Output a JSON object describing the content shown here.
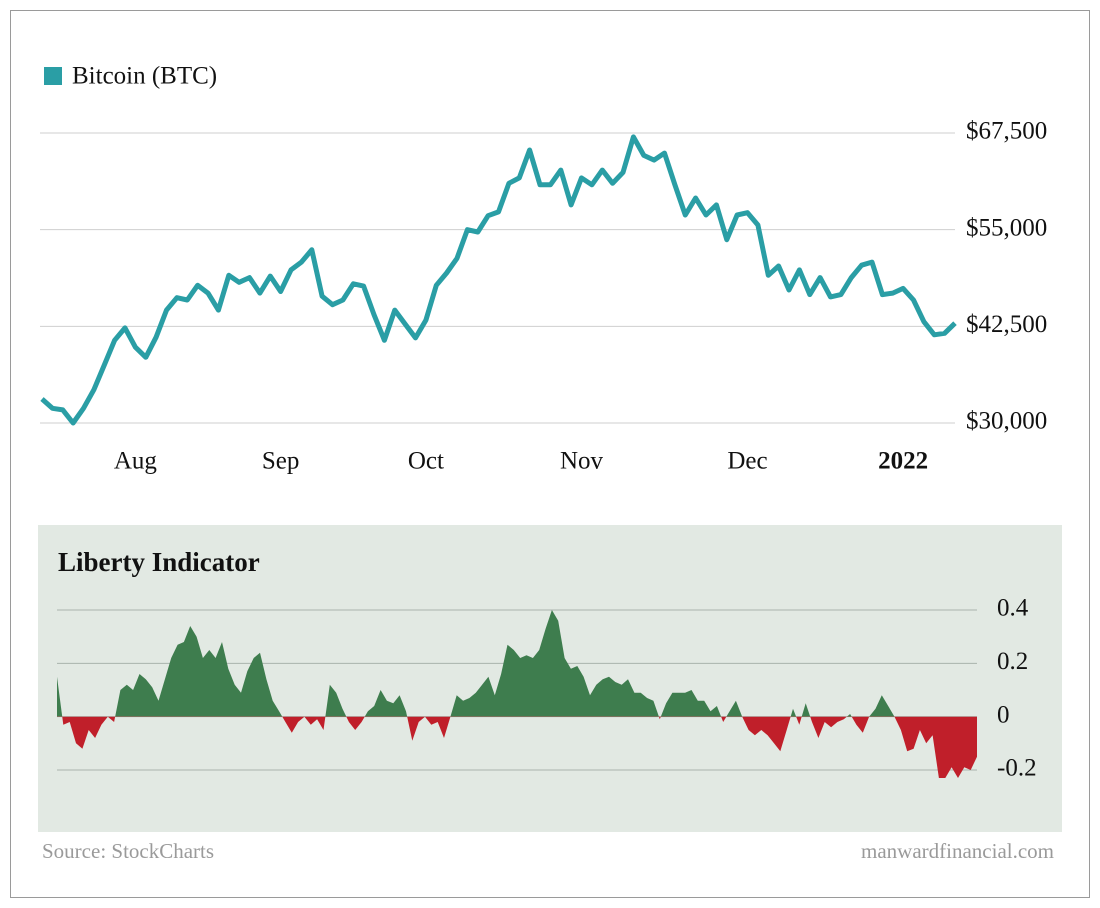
{
  "chart_data": [
    {
      "type": "line",
      "series": [
        {
          "name": "Bitcoin (BTC)",
          "color": "#2a9ea5",
          "values": [
            33100,
            31900,
            31700,
            30000,
            31900,
            34300,
            37500,
            40700,
            42300,
            39800,
            38500,
            41100,
            44600,
            46200,
            45900,
            47800,
            46800,
            44600,
            49100,
            48200,
            48800,
            46800,
            49000,
            47000,
            49800,
            50800,
            52400,
            46400,
            45300,
            45900,
            48000,
            47700,
            44000,
            40700,
            44600,
            42800,
            41000,
            43300,
            47800,
            49400,
            51300,
            55000,
            54700,
            56800,
            57300,
            61000,
            61700,
            65300,
            60800,
            60800,
            62700,
            58200,
            61700,
            60800,
            62700,
            61000,
            62400,
            67000,
            64600,
            64000,
            64900,
            60800,
            56900,
            59100,
            56900,
            58200,
            53700,
            56900,
            57200,
            55600,
            49100,
            50300,
            47200,
            49800,
            46600,
            48800,
            46300,
            46600,
            48800,
            50400,
            50800,
            46600,
            46800,
            47400,
            45900,
            43100,
            41400,
            41600,
            42900
          ]
        }
      ],
      "categories": [
        null,
        null,
        null,
        null,
        null,
        null,
        null,
        null,
        null,
        "Aug",
        null,
        null,
        null,
        null,
        null,
        null,
        null,
        null,
        null,
        null,
        null,
        null,
        null,
        "Sep",
        null,
        null,
        null,
        null,
        null,
        null,
        null,
        null,
        null,
        null,
        null,
        null,
        null,
        "Oct",
        null,
        null,
        null,
        null,
        null,
        null,
        null,
        null,
        null,
        null,
        null,
        null,
        null,
        null,
        "Nov",
        null,
        null,
        null,
        null,
        null,
        null,
        null,
        null,
        null,
        null,
        null,
        null,
        null,
        null,
        null,
        "Dec",
        null,
        null,
        null,
        null,
        null,
        null,
        null,
        null,
        null,
        null,
        null,
        null,
        null,
        null,
        "2022",
        null,
        null,
        null,
        null,
        null
      ],
      "ylim": [
        30000,
        67500
      ],
      "yticks": [
        {
          "value": 30000,
          "label": "$30,000"
        },
        {
          "value": 42500,
          "label": "$42,500"
        },
        {
          "value": 55000,
          "label": "$55,000"
        },
        {
          "value": 67500,
          "label": "$67,500"
        }
      ],
      "grid": true
    },
    {
      "type": "area",
      "title": "Liberty Indicator",
      "values": [
        0.15,
        -0.03,
        -0.02,
        -0.1,
        -0.12,
        -0.05,
        -0.08,
        -0.03,
        0.0,
        -0.02,
        0.1,
        0.12,
        0.1,
        0.16,
        0.14,
        0.11,
        0.06,
        0.14,
        0.22,
        0.27,
        0.28,
        0.34,
        0.3,
        0.22,
        0.25,
        0.22,
        0.28,
        0.18,
        0.12,
        0.09,
        0.17,
        0.22,
        0.24,
        0.14,
        0.06,
        0.02,
        -0.02,
        -0.06,
        -0.02,
        0.0,
        -0.03,
        -0.01,
        -0.05,
        0.12,
        0.09,
        0.03,
        -0.02,
        -0.05,
        -0.02,
        0.02,
        0.04,
        0.1,
        0.06,
        0.05,
        0.08,
        0.02,
        -0.09,
        -0.02,
        0.0,
        -0.03,
        -0.02,
        -0.08,
        0.0,
        0.08,
        0.06,
        0.07,
        0.09,
        0.12,
        0.15,
        0.08,
        0.16,
        0.27,
        0.25,
        0.22,
        0.23,
        0.22,
        0.25,
        0.33,
        0.4,
        0.36,
        0.22,
        0.18,
        0.19,
        0.15,
        0.08,
        0.12,
        0.14,
        0.15,
        0.13,
        0.12,
        0.14,
        0.09,
        0.09,
        0.07,
        0.06,
        -0.01,
        0.05,
        0.09,
        0.09,
        0.09,
        0.1,
        0.06,
        0.06,
        0.02,
        0.04,
        -0.02,
        0.02,
        0.06,
        0.0,
        -0.05,
        -0.07,
        -0.05,
        -0.07,
        -0.1,
        -0.13,
        -0.05,
        0.03,
        -0.03,
        0.05,
        -0.02,
        -0.08,
        -0.02,
        -0.04,
        -0.02,
        -0.01,
        0.01,
        -0.03,
        -0.06,
        0.0,
        0.03,
        0.08,
        0.04,
        0.0,
        -0.05,
        -0.13,
        -0.12,
        -0.05,
        -0.1,
        -0.07,
        -0.23,
        -0.23,
        -0.19,
        -0.23,
        -0.19,
        -0.2,
        -0.15
      ],
      "positive_color": "#3e7d4e",
      "negative_color": "#c01f2a",
      "ylim": [
        -0.2,
        0.4
      ],
      "yticks": [
        -0.2,
        0,
        0.2,
        0.4
      ],
      "grid": true
    }
  ],
  "footer": {
    "source": "Source: StockCharts",
    "site": "manwardfinancial.com"
  }
}
